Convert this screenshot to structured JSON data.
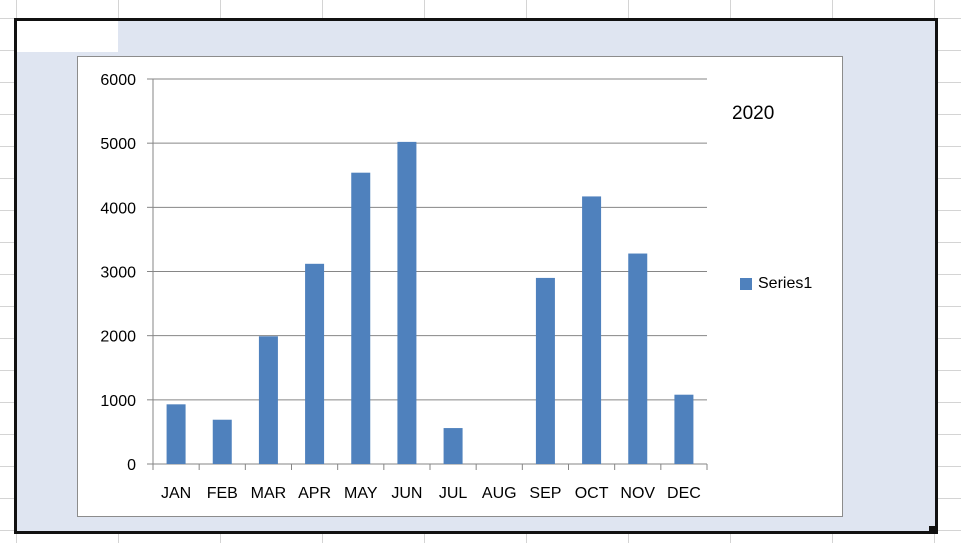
{
  "colors": {
    "bar": "#4f81bd",
    "gridline": "#868686",
    "axis": "#868686",
    "selection_frame": "#111111",
    "sheet_background": "#dfe5f1"
  },
  "chart_data": {
    "type": "bar",
    "title": "2020",
    "xlabel": "",
    "ylabel": "",
    "categories": [
      "JAN",
      "FEB",
      "MAR",
      "APR",
      "MAY",
      "JUN",
      "JUL",
      "AUG",
      "SEP",
      "OCT",
      "NOV",
      "DEC"
    ],
    "series": [
      {
        "name": "Series1",
        "values": [
          930,
          690,
          1990,
          3120,
          4540,
          5020,
          560,
          0,
          2900,
          4170,
          3280,
          1080
        ]
      }
    ],
    "ylim": [
      0,
      6000
    ],
    "yticks": [
      0,
      1000,
      2000,
      3000,
      4000,
      5000,
      6000
    ],
    "grid": true,
    "legend_position": "right"
  }
}
